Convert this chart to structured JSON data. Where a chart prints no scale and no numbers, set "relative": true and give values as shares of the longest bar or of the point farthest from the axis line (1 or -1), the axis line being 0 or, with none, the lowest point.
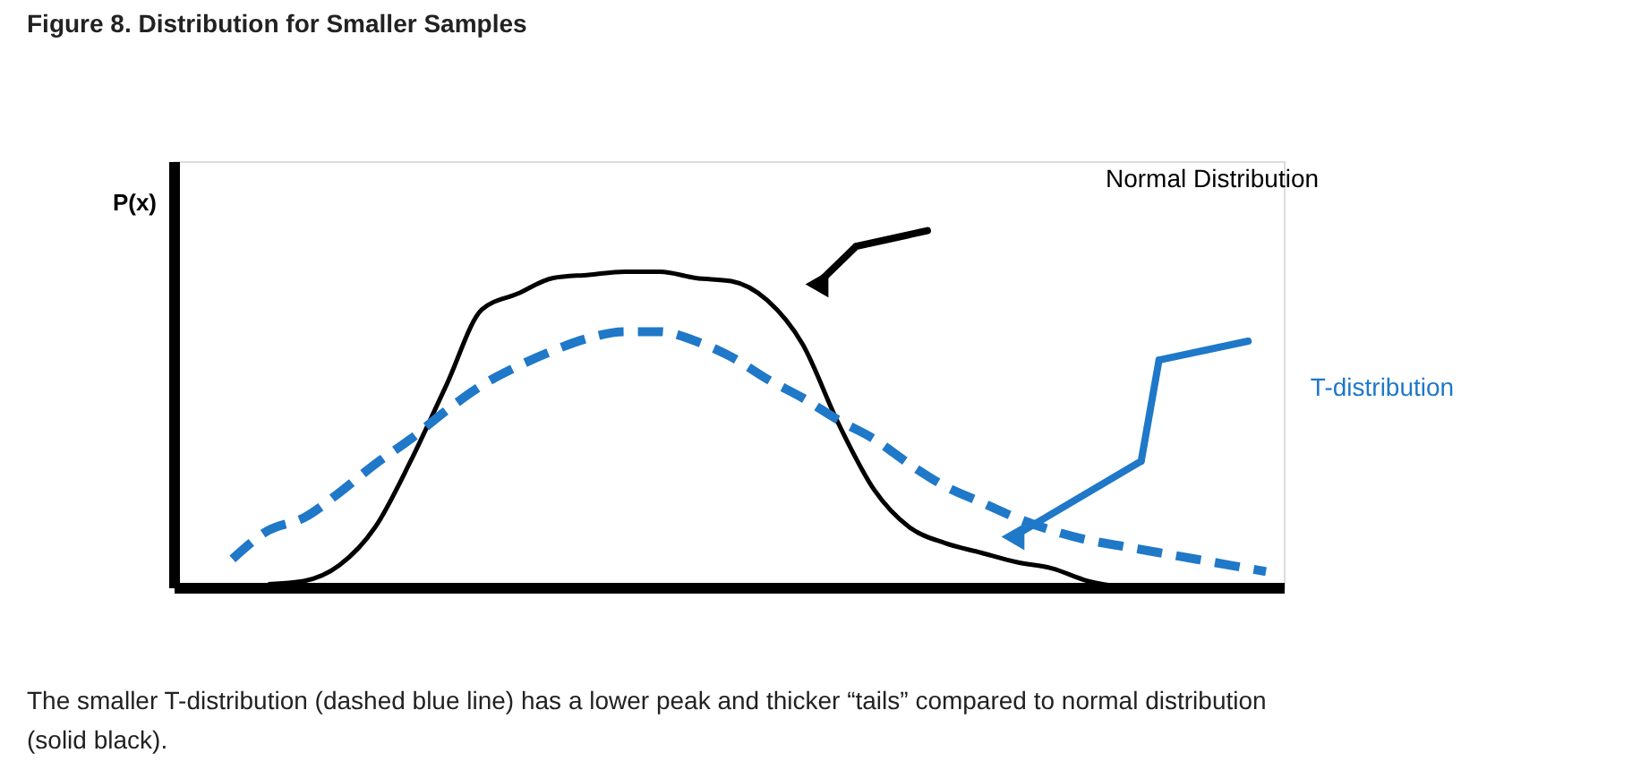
{
  "chart_data": {
    "type": "line",
    "title": "Figure 8. Distribution for Smaller Samples",
    "ylabel": "P(x)",
    "relative": true,
    "grid": false,
    "categories": [
      null,
      null,
      null,
      null,
      null,
      null,
      null,
      null,
      null,
      null,
      null,
      null,
      null,
      null,
      null,
      null,
      null,
      null,
      null,
      null,
      null,
      null,
      null,
      null,
      null,
      null,
      null,
      null,
      null,
      null
    ],
    "series": [
      {
        "name": "Normal Distribution",
        "color": "#000000",
        "line_style": "solid",
        "values": [
          null,
          0.01,
          0.02,
          0.07,
          0.19,
          0.4,
          0.64,
          0.88,
          0.93,
          0.98,
          0.99,
          1.0,
          1.0,
          0.98,
          0.97,
          0.91,
          0.77,
          0.52,
          0.31,
          0.19,
          0.14,
          0.11,
          0.08,
          0.06,
          0.02,
          0.0,
          null,
          null,
          null,
          null
        ]
      },
      {
        "name": "T-distribution",
        "color": "#1f78c8",
        "line_style": "dashed",
        "values": [
          0.09,
          0.18,
          0.22,
          0.3,
          0.39,
          0.47,
          0.56,
          0.64,
          0.7,
          0.75,
          0.79,
          0.81,
          0.81,
          0.78,
          0.73,
          0.66,
          0.6,
          0.53,
          0.47,
          0.39,
          0.32,
          0.27,
          0.22,
          0.18,
          0.15,
          0.13,
          0.11,
          0.09,
          0.07,
          0.05
        ]
      }
    ],
    "annotations": [
      "The smaller T-distribution (dashed blue line) has a lower peak and thicker “tails” compared to normal distribution (solid black)."
    ]
  }
}
